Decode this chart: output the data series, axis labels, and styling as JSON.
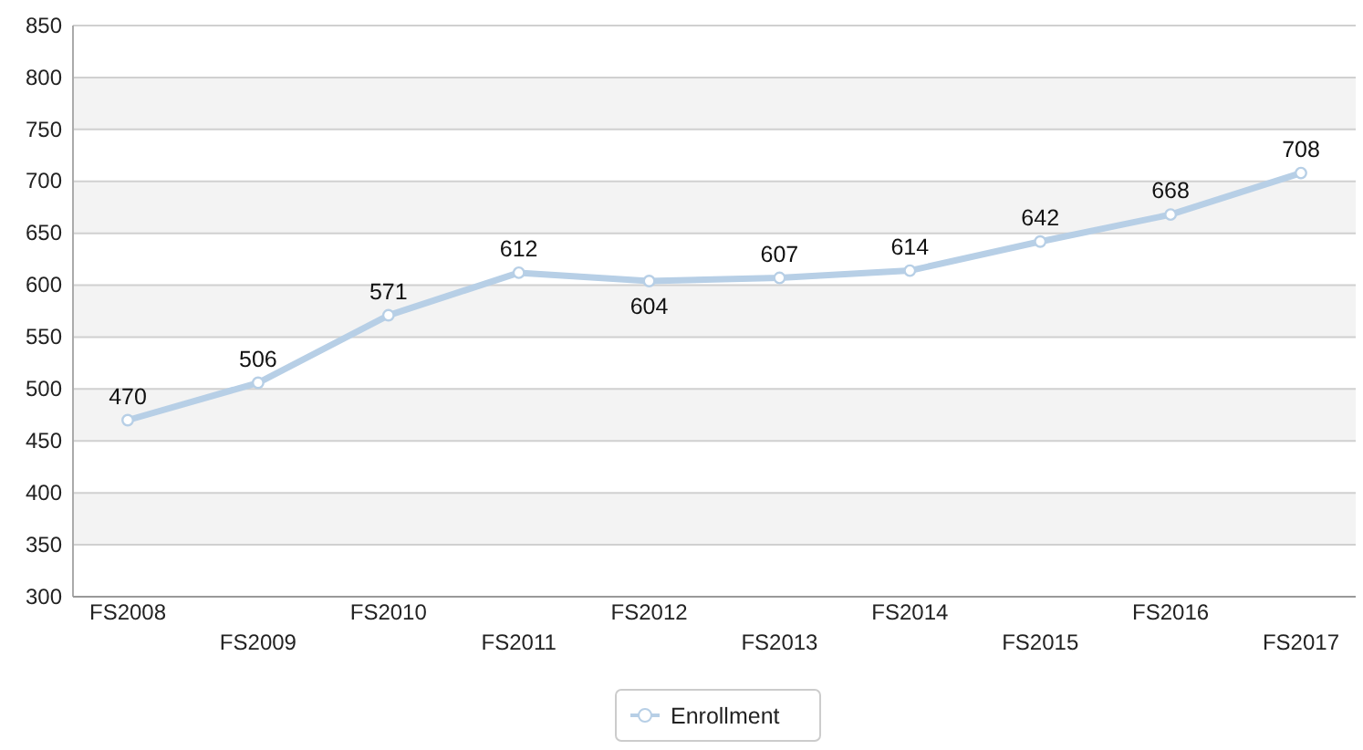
{
  "chart_data": {
    "type": "line",
    "categories": [
      "FS2008",
      "FS2009",
      "FS2010",
      "FS2011",
      "FS2012",
      "FS2013",
      "FS2014",
      "FS2015",
      "FS2016",
      "FS2017"
    ],
    "series": [
      {
        "name": "Enrollment",
        "color": "#b7cfe6",
        "values": [
          470,
          506,
          571,
          612,
          604,
          607,
          614,
          642,
          668,
          708
        ]
      }
    ],
    "ylim": [
      300,
      850
    ],
    "yticks": [
      300,
      350,
      400,
      450,
      500,
      550,
      600,
      650,
      700,
      750,
      800,
      850
    ],
    "grid": "y",
    "legend": "bottom",
    "marker": "circle",
    "data_labels": true
  }
}
